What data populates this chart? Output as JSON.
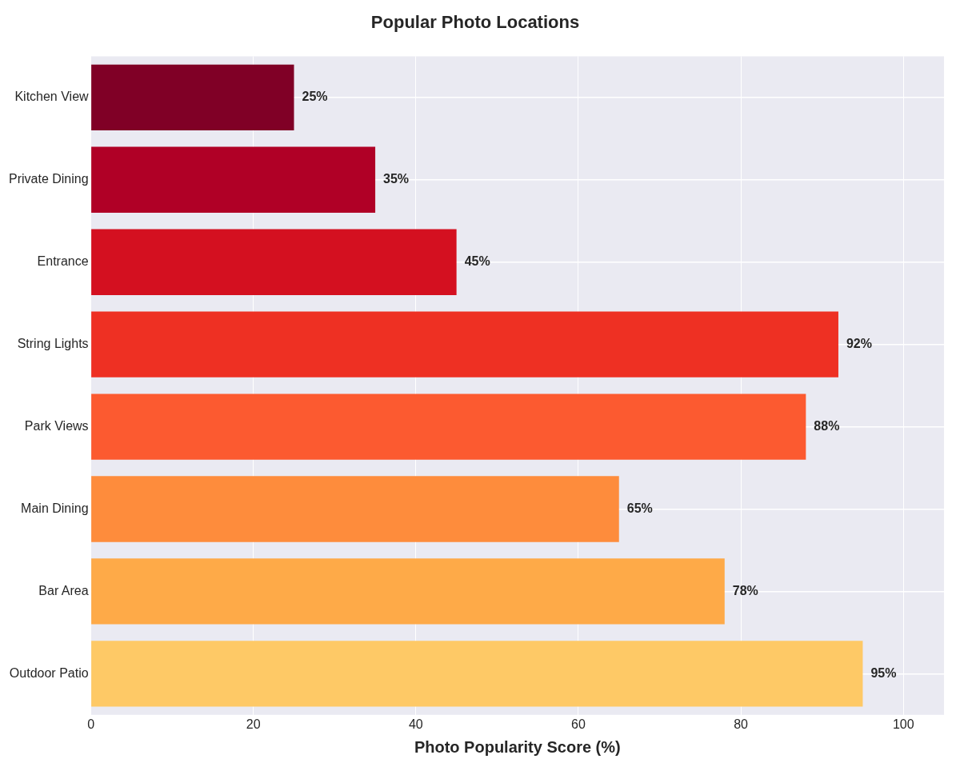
{
  "chart_data": {
    "type": "bar",
    "orientation": "horizontal",
    "title": "Popular Photo Locations",
    "xlabel": "Photo Popularity Score (%)",
    "categories": [
      "Kitchen View",
      "Private Dining",
      "Entrance",
      "String Lights",
      "Park Views",
      "Main Dining",
      "Bar Area",
      "Outdoor Patio"
    ],
    "values": [
      25,
      35,
      45,
      92,
      88,
      65,
      78,
      95
    ],
    "colors": [
      "#800026",
      "#b00026",
      "#d41020",
      "#ee3023",
      "#fc5a30",
      "#fe8c3c",
      "#feaa48",
      "#fec966"
    ],
    "value_labels": [
      "25%",
      "35%",
      "45%",
      "92%",
      "88%",
      "65%",
      "78%",
      "95%"
    ],
    "xlim": [
      0,
      105
    ],
    "xticks": [
      0,
      20,
      40,
      60,
      80,
      100
    ],
    "grid": true
  }
}
